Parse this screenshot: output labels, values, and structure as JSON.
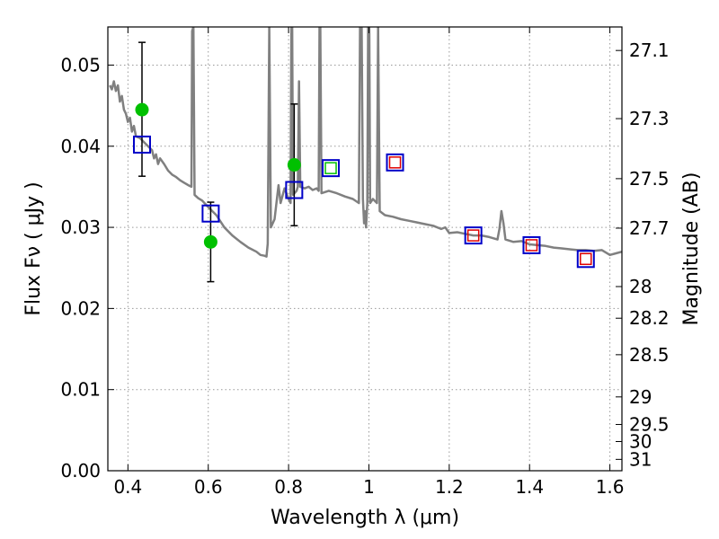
{
  "chart_data": {
    "type": "scatter",
    "xlabel": "Wavelength  λ (μm)",
    "ylabel": "Flux  Fν  ( μJy )",
    "ylabel_right": "Magnitude (AB)",
    "xlim": [
      0.35,
      1.63
    ],
    "ylim": [
      0.0,
      0.0547
    ],
    "grid": true,
    "x_ticks": [
      0.4,
      0.6,
      0.8,
      1.0,
      1.2,
      1.4,
      1.6
    ],
    "x_tick_labels": [
      "0.4",
      "0.6",
      "0.8",
      "1",
      "1.2",
      "1.4",
      "1.6"
    ],
    "y_ticks": [
      0.0,
      0.01,
      0.02,
      0.03,
      0.04,
      0.05
    ],
    "y_tick_labels": [
      "0.00",
      "0.01",
      "0.02",
      "0.03",
      "0.04",
      "0.05"
    ],
    "right_axis_ticks": [
      {
        "label": "27.1",
        "flux": 0.0518
      },
      {
        "label": "27.3",
        "flux": 0.0434
      },
      {
        "label": "27.5",
        "flux": 0.036
      },
      {
        "label": "27.7",
        "flux": 0.0299
      },
      {
        "label": "28",
        "flux": 0.0227
      },
      {
        "label": "28.2",
        "flux": 0.0188
      },
      {
        "label": "28.5",
        "flux": 0.0143
      },
      {
        "label": "29",
        "flux": 0.0091
      },
      {
        "label": "29.5",
        "flux": 0.0057
      },
      {
        "label": "30",
        "flux": 0.0036
      },
      {
        "label": "31",
        "flux": 0.0014
      }
    ],
    "series": [
      {
        "kind": "line",
        "color": "#808080",
        "points": [
          [
            0.355,
            0.0475
          ],
          [
            0.36,
            0.047
          ],
          [
            0.365,
            0.048
          ],
          [
            0.37,
            0.0468
          ],
          [
            0.375,
            0.0475
          ],
          [
            0.38,
            0.0455
          ],
          [
            0.385,
            0.0462
          ],
          [
            0.39,
            0.0445
          ],
          [
            0.395,
            0.044
          ],
          [
            0.4,
            0.043
          ],
          [
            0.405,
            0.0435
          ],
          [
            0.41,
            0.0418
          ],
          [
            0.415,
            0.0425
          ],
          [
            0.42,
            0.0412
          ],
          [
            0.43,
            0.041
          ],
          [
            0.44,
            0.0405
          ],
          [
            0.45,
            0.04
          ],
          [
            0.46,
            0.0395
          ],
          [
            0.465,
            0.0385
          ],
          [
            0.47,
            0.039
          ],
          [
            0.475,
            0.0378
          ],
          [
            0.48,
            0.0385
          ],
          [
            0.49,
            0.0378
          ],
          [
            0.5,
            0.037
          ],
          [
            0.51,
            0.0365
          ],
          [
            0.52,
            0.0362
          ],
          [
            0.53,
            0.0358
          ],
          [
            0.54,
            0.0355
          ],
          [
            0.55,
            0.0352
          ],
          [
            0.558,
            0.035
          ],
          [
            0.56,
            0.0542
          ],
          [
            0.563,
            0.0547
          ],
          [
            0.566,
            0.034
          ],
          [
            0.575,
            0.0336
          ],
          [
            0.585,
            0.0333
          ],
          [
            0.6,
            0.0325
          ],
          [
            0.62,
            0.0315
          ],
          [
            0.64,
            0.03
          ],
          [
            0.66,
            0.029
          ],
          [
            0.68,
            0.0282
          ],
          [
            0.7,
            0.0275
          ],
          [
            0.72,
            0.027
          ],
          [
            0.73,
            0.0266
          ],
          [
            0.74,
            0.0265
          ],
          [
            0.745,
            0.0264
          ],
          [
            0.748,
            0.028
          ],
          [
            0.752,
            0.0547
          ],
          [
            0.756,
            0.03
          ],
          [
            0.765,
            0.031
          ],
          [
            0.775,
            0.0352
          ],
          [
            0.78,
            0.033
          ],
          [
            0.79,
            0.0348
          ],
          [
            0.8,
            0.0335
          ],
          [
            0.805,
            0.033
          ],
          [
            0.807,
            0.0547
          ],
          [
            0.809,
            0.0547
          ],
          [
            0.811,
            0.034
          ],
          [
            0.82,
            0.0345
          ],
          [
            0.823,
            0.035
          ],
          [
            0.826,
            0.048
          ],
          [
            0.829,
            0.035
          ],
          [
            0.84,
            0.0348
          ],
          [
            0.85,
            0.035
          ],
          [
            0.86,
            0.0346
          ],
          [
            0.87,
            0.0348
          ],
          [
            0.875,
            0.0345
          ],
          [
            0.877,
            0.0547
          ],
          [
            0.879,
            0.0547
          ],
          [
            0.882,
            0.0342
          ],
          [
            0.9,
            0.0345
          ],
          [
            0.92,
            0.0342
          ],
          [
            0.94,
            0.0338
          ],
          [
            0.96,
            0.0335
          ],
          [
            0.975,
            0.033
          ],
          [
            0.978,
            0.0547
          ],
          [
            0.982,
            0.0547
          ],
          [
            0.985,
            0.0335
          ],
          [
            0.988,
            0.0305
          ],
          [
            0.99,
            0.032
          ],
          [
            0.993,
            0.03
          ],
          [
            0.996,
            0.033
          ],
          [
            0.998,
            0.0547
          ],
          [
            1.001,
            0.0547
          ],
          [
            1.003,
            0.033
          ],
          [
            1.01,
            0.0335
          ],
          [
            1.02,
            0.033
          ],
          [
            1.023,
            0.0547
          ],
          [
            1.027,
            0.032
          ],
          [
            1.04,
            0.0315
          ],
          [
            1.06,
            0.0313
          ],
          [
            1.08,
            0.031
          ],
          [
            1.1,
            0.0308
          ],
          [
            1.12,
            0.0306
          ],
          [
            1.14,
            0.0304
          ],
          [
            1.16,
            0.0302
          ],
          [
            1.18,
            0.0298
          ],
          [
            1.19,
            0.03
          ],
          [
            1.2,
            0.0293
          ],
          [
            1.22,
            0.0294
          ],
          [
            1.24,
            0.0292
          ],
          [
            1.26,
            0.029
          ],
          [
            1.28,
            0.029
          ],
          [
            1.3,
            0.0288
          ],
          [
            1.32,
            0.0285
          ],
          [
            1.325,
            0.0298
          ],
          [
            1.33,
            0.032
          ],
          [
            1.335,
            0.0305
          ],
          [
            1.34,
            0.0285
          ],
          [
            1.36,
            0.0282
          ],
          [
            1.38,
            0.0283
          ],
          [
            1.4,
            0.0279
          ],
          [
            1.42,
            0.0278
          ],
          [
            1.44,
            0.0277
          ],
          [
            1.46,
            0.0275
          ],
          [
            1.48,
            0.0274
          ],
          [
            1.5,
            0.0273
          ],
          [
            1.52,
            0.0272
          ],
          [
            1.54,
            0.0272
          ],
          [
            1.56,
            0.0271
          ],
          [
            1.58,
            0.0272
          ],
          [
            1.6,
            0.0266
          ],
          [
            1.615,
            0.0268
          ],
          [
            1.63,
            0.027
          ]
        ]
      },
      {
        "kind": "points",
        "color": "#00c000",
        "points": [
          {
            "x": 0.435,
            "y": 0.0445,
            "yerr": [
              0.0363,
              0.0528
            ]
          },
          {
            "x": 0.606,
            "y": 0.0282,
            "yerr": [
              0.0233,
              0.0331
            ]
          },
          {
            "x": 0.814,
            "y": 0.0377,
            "yerr": [
              0.0302,
              0.0452
            ]
          }
        ]
      },
      {
        "kind": "open-squares",
        "color": "#0000c8",
        "points": [
          {
            "x": 0.435,
            "y": 0.0402
          },
          {
            "x": 0.606,
            "y": 0.0317
          },
          {
            "x": 0.814,
            "y": 0.0346
          },
          {
            "x": 0.905,
            "y": 0.0373
          },
          {
            "x": 1.065,
            "y": 0.038
          },
          {
            "x": 1.26,
            "y": 0.029
          },
          {
            "x": 1.405,
            "y": 0.0278
          },
          {
            "x": 1.54,
            "y": 0.0261
          }
        ]
      },
      {
        "kind": "open-squares-small",
        "color": "#00c000",
        "points": [
          {
            "x": 0.905,
            "y": 0.0373
          }
        ]
      },
      {
        "kind": "open-squares-small",
        "color": "#e00000",
        "points": [
          {
            "x": 1.065,
            "y": 0.038
          },
          {
            "x": 1.26,
            "y": 0.029
          },
          {
            "x": 1.405,
            "y": 0.0278
          },
          {
            "x": 1.54,
            "y": 0.0261
          }
        ]
      }
    ]
  }
}
